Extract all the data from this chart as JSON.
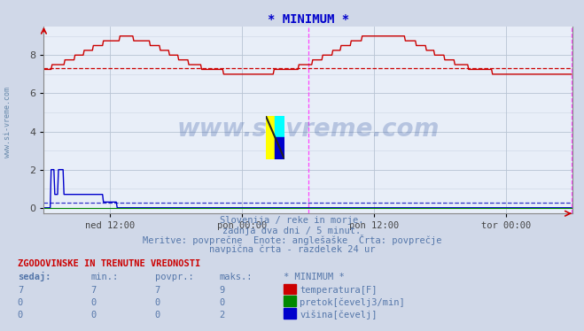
{
  "title": "* MINIMUM *",
  "title_color": "#0000cc",
  "bg_color": "#d0d8e8",
  "plot_bg_color": "#e8eef8",
  "grid_color": "#b8c4d4",
  "xlim": [
    0,
    576
  ],
  "ylim": [
    -0.3,
    9.5
  ],
  "yticks": [
    0,
    2,
    4,
    6,
    8
  ],
  "xtick_labels": [
    "ned 12:00",
    "pon 00:00",
    "pon 12:00",
    "tor 00:00"
  ],
  "xtick_positions": [
    72,
    216,
    360,
    504
  ],
  "vline1": 288,
  "vline2": 575,
  "vline_color": "#ff44ff",
  "avg_line_temp": 7.3,
  "avg_line_color": "#cc0000",
  "avg_line_blue": 0.28,
  "avg_line_blue_color": "#0000bb",
  "text_info_lines": [
    "Slovenija / reke in morje.",
    "zadnja dva dni / 5 minut.",
    "Meritve: povprečne  Enote: anglešaške  Črta: povprečje",
    "navpična črta - razdelek 24 ur"
  ],
  "text_info_color": "#5577aa",
  "table_header": "ZGODOVINSKE IN TRENUTNE VREDNOSTI",
  "table_col_headers": [
    "sedaj:",
    "min.:",
    "povpr.:",
    "maks.:",
    "* MINIMUM *"
  ],
  "table_rows": [
    [
      7,
      7,
      7,
      9,
      "temperatura[F]",
      "#cc0000"
    ],
    [
      0,
      0,
      0,
      0,
      "pretok[čevelj3/min]",
      "#008800"
    ],
    [
      0,
      0,
      0,
      2,
      "višina[čevelj]",
      "#0000cc"
    ]
  ],
  "watermark": "www.si-vreme.com",
  "watermark_color": "#4466aa",
  "ylabel_text": "www.si-vreme.com",
  "ylabel_color": "#6688aa",
  "temp_color": "#cc0000",
  "blue_color": "#0000cc",
  "green_color": "#008800"
}
